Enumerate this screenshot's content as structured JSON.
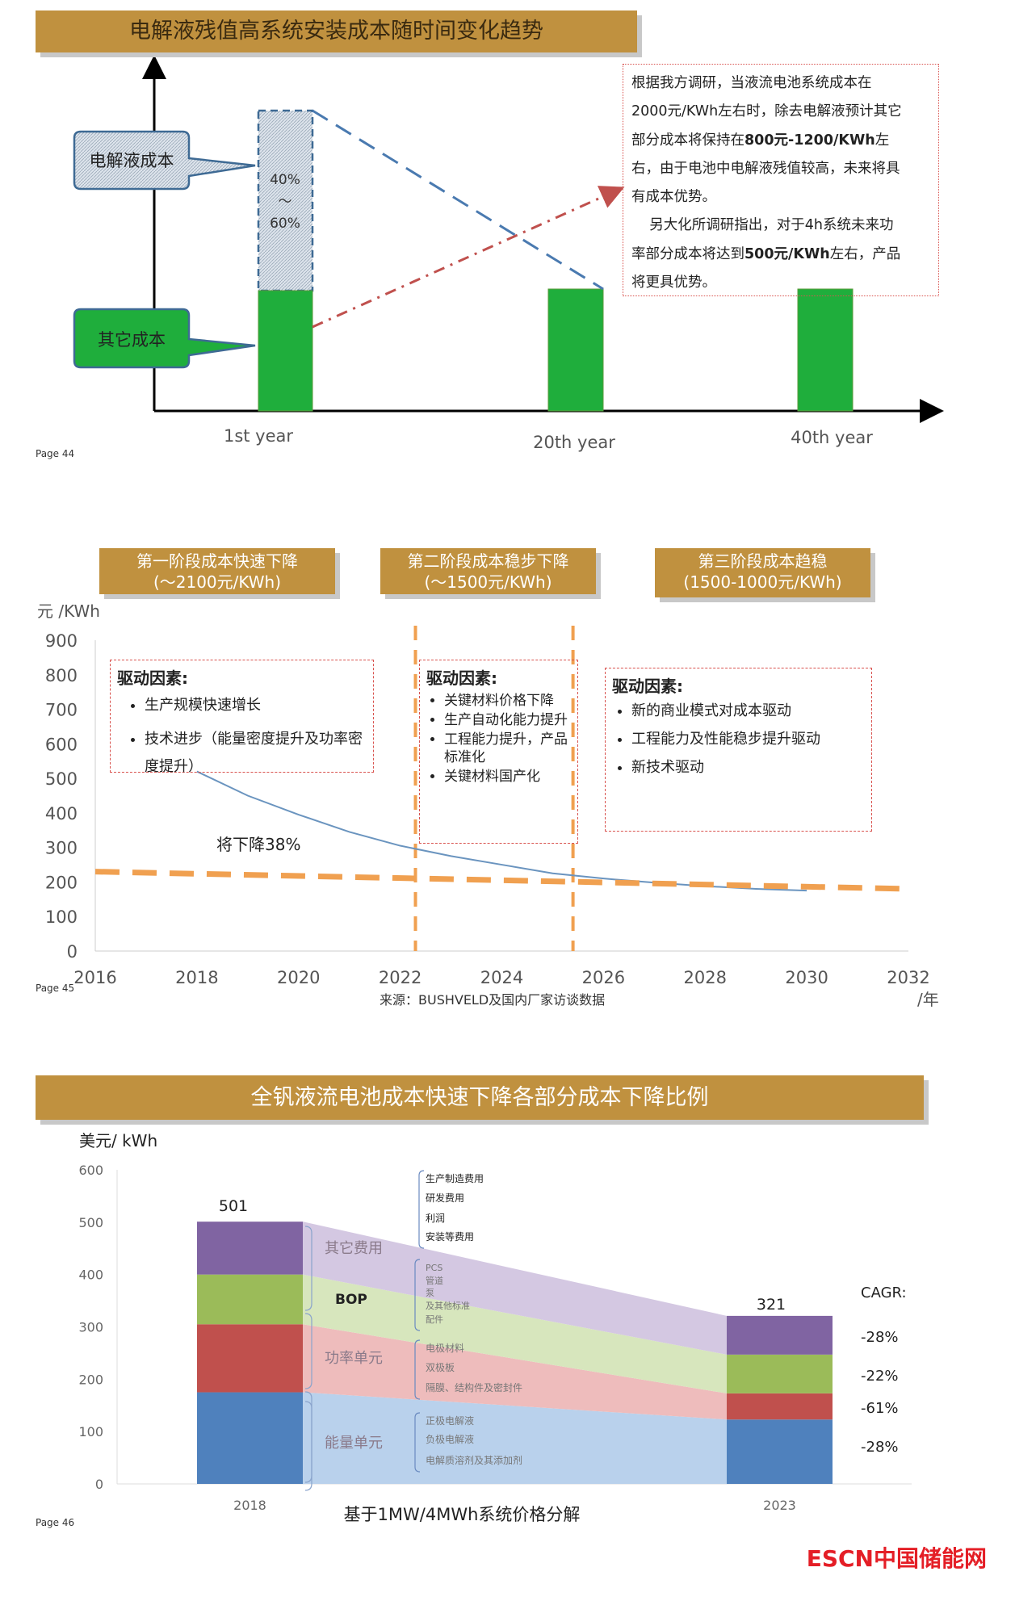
{
  "panel1": {
    "title": "电解液残值高系统安装成本随时间变化趋势",
    "callout_electrolyte": "电解液成本",
    "callout_other": "其它成本",
    "share_top": "40%",
    "share_tilde": "～",
    "share_bottom": "60%",
    "xlabels": [
      "1st year",
      "20th year",
      "40th year"
    ],
    "note_lines": [
      "根据我方调研，当液流电池系统成本在",
      "2000元/KWh左右时，除去电解液预计其它",
      "部分成本将保持在",
      "800元-1200/KWh",
      "左",
      "右，由于电池中电解液残值较高，未来将具",
      "有成本优势。",
      "另大化所调研指出，对于4h系统未来功",
      "率部分成本将达到",
      "500元/KWh",
      "左右，产品",
      "将更具优势。"
    ],
    "page": "Page 44",
    "colors": {
      "green": "#1fae3c",
      "blue_dash": "#4a7ab0",
      "red_dash": "#c0504d",
      "title_bg": "#c0913f"
    }
  },
  "panel2": {
    "phases": [
      {
        "line1": "第一阶段成本快速下降",
        "line2": "(～2100元/KWh)"
      },
      {
        "line1": "第二阶段成本稳步下降",
        "line2": "(～1500元/KWh)"
      },
      {
        "line1": "第三阶段成本趋稳",
        "line2": "(1500-1000元/KWh)"
      }
    ],
    "drivers": [
      {
        "title": "驱动因素:",
        "items": [
          "生产规模快速增长",
          "技术进步（能量密度提升及功率密度提升）"
        ]
      },
      {
        "title": "驱动因素:",
        "items": [
          "关键材料价格下降",
          "生产自动化能力提升",
          "工程能力提升，产品标准化",
          "关键材料国产化"
        ]
      },
      {
        "title": "驱动因素:",
        "items": [
          "新的商业模式对成本驱动",
          "工程能力及性能稳步提升驱动",
          "新技术驱动"
        ]
      }
    ],
    "annotation": "将下降38%",
    "source": "来源：BUSHVELD及国内厂家访谈数据",
    "page": "Page 45"
  },
  "panel3": {
    "title": "全钒液流电池成本快速下降各部分成本下降比例",
    "page": "Page 46",
    "subtitle": "基于1MW/4MWh系统价格分解",
    "cagr_label": "CAGR:",
    "groups": [
      {
        "name": "其它费用",
        "subs": [
          "生产制造费用",
          "研发费用",
          "利润",
          "安装等费用"
        ]
      },
      {
        "name": "BOP",
        "subs": [
          "PCS",
          "管道",
          "泵",
          "及其他标准",
          "配件"
        ]
      },
      {
        "name": "功率单元",
        "subs": [
          "电极材料",
          "双极板",
          "隔膜、结构件及密封件"
        ]
      },
      {
        "name": "能量单元",
        "subs": [
          "正极电解液",
          "负极电解液",
          "电解质溶剂及其添加剂"
        ]
      }
    ],
    "logo": "ESCN中国储能网"
  },
  "chart_data": [
    {
      "type": "bar",
      "title": "电解液残值高系统安装成本随时间变化趋势",
      "categories": [
        "1st year",
        "20th year",
        "40th year"
      ],
      "series": [
        {
          "name": "其它成本",
          "values": [
            1,
            1,
            1
          ]
        },
        {
          "name": "电解液成本",
          "values": [
            1.6,
            0,
            0
          ]
        }
      ],
      "note": "电解液成本占40%～60%"
    },
    {
      "type": "line",
      "ylabel": "元 /KWh",
      "xlabel": "/年",
      "ylim": [
        0,
        900
      ],
      "xlim": [
        2016,
        2032
      ],
      "yticks": [
        "0",
        "100",
        "200",
        "300",
        "400",
        "500",
        "600",
        "700",
        "800",
        "900"
      ],
      "xticks": [
        "2016",
        "2018",
        "2020",
        "2022",
        "2024",
        "2026",
        "2028",
        "2030",
        "2032"
      ],
      "series": [
        {
          "name": "成本曲线",
          "x": [
            2018,
            2019,
            2020,
            2021,
            2022,
            2023,
            2024,
            2025,
            2026,
            2027,
            2028,
            2029,
            2030
          ],
          "y": [
            520,
            450,
            395,
            345,
            305,
            275,
            250,
            225,
            210,
            198,
            188,
            180,
            175
          ]
        },
        {
          "name": "趋势线",
          "x": [
            2016,
            2032
          ],
          "y": [
            230,
            180
          ]
        }
      ],
      "phase_boundaries": [
        2022.3,
        2025.4
      ]
    },
    {
      "type": "bar",
      "ylabel": "美元/ kWh",
      "ylim": [
        0,
        600
      ],
      "yticks": [
        "0",
        "100",
        "200",
        "300",
        "400",
        "500",
        "600"
      ],
      "categories": [
        "2018",
        "2023"
      ],
      "totals": [
        "501",
        "321"
      ],
      "series": [
        {
          "name": "能量单元",
          "values": [
            175,
            123
          ],
          "color": "#4f81bd",
          "band": "#b9d1ec",
          "cagr": "-28%"
        },
        {
          "name": "功率单元",
          "values": [
            130,
            50
          ],
          "color": "#c0504d",
          "band": "#eebcbc",
          "cagr": "-61%"
        },
        {
          "name": "BOP",
          "values": [
            95,
            74
          ],
          "color": "#9bbb59",
          "band": "#d7e6bd",
          "cagr": "-22%"
        },
        {
          "name": "其它费用",
          "values": [
            101,
            74
          ],
          "color": "#8064a2",
          "band": "#d4c8e2",
          "cagr": "-28%"
        }
      ]
    }
  ]
}
